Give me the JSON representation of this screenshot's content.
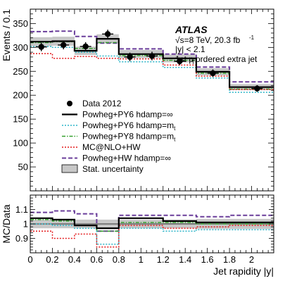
{
  "chart_data": {
    "type": "step-histogram",
    "title": "",
    "xlabel": "Jet rapidity |y|",
    "x_edges": [
      0,
      0.2,
      0.4,
      0.6,
      0.8,
      1.0,
      1.2,
      1.5,
      1.8,
      2.0,
      2.2
    ],
    "top_panel": {
      "ylabel": "Events / 0.1",
      "ylim": [
        0,
        380
      ],
      "y_ticks": [
        50,
        100,
        150,
        200,
        250,
        300,
        350
      ],
      "data": {
        "name": "Data 2012",
        "x": [
          0.1,
          0.3,
          0.5,
          0.7,
          0.9,
          1.1,
          1.35,
          1.65,
          2.05
        ],
        "y": [
          301,
          305,
          302,
          328,
          280,
          282,
          271,
          246,
          214
        ],
        "yerr": [
          9,
          9,
          9,
          9,
          9,
          9,
          8,
          8,
          7
        ]
      },
      "series": [
        {
          "name": "Powheg+PY6 hdamp=∞",
          "style": "solid",
          "color": "#000000",
          "values": [
            312,
            313,
            293,
            318,
            286,
            286,
            277,
            249,
            217,
            217
          ]
        },
        {
          "name": "Powheg+PY6 hdamp=m_t",
          "style": "dotted",
          "color": "#2bb5c8",
          "values": [
            302,
            300,
            290,
            282,
            270,
            270,
            258,
            236,
            206,
            206
          ]
        },
        {
          "name": "Powheg+PY8 hdamp=m_t",
          "style": "dash-dot",
          "color": "#33a02c",
          "values": [
            310,
            312,
            298,
            310,
            283,
            283,
            273,
            246,
            213,
            213
          ]
        },
        {
          "name": "MC@NLO+HW",
          "style": "dotted",
          "color": "#e31a1c",
          "values": [
            287,
            277,
            281,
            277,
            276,
            276,
            263,
            240,
            212,
            212
          ]
        },
        {
          "name": "Powheg+HW hdamp=∞",
          "style": "dashed",
          "color": "#6a3d9a",
          "values": [
            333,
            334,
            323,
            309,
            297,
            297,
            286,
            259,
            228,
            228
          ]
        }
      ],
      "stat_band_label": "Stat. uncertainty"
    },
    "ratio_panel": {
      "ylabel": "MC/Data",
      "ylim": [
        0.8,
        1.2
      ],
      "y_ticks": [
        0.9,
        1,
        1.1
      ],
      "stat_band_halfwidth": [
        0.03,
        0.03,
        0.03,
        0.03,
        0.03,
        0.03,
        0.03,
        0.035,
        0.035,
        0.035
      ],
      "series": [
        {
          "name": "Powheg+PY6 hdamp=∞",
          "values": [
            1.04,
            1.03,
            0.99,
            0.97,
            1.04,
            1.04,
            1.02,
            1.01,
            1.01,
            1.01
          ]
        },
        {
          "name": "Powheg+PY6 hdamp=m_t",
          "values": [
            1.0,
            0.99,
            0.97,
            0.86,
            0.97,
            0.97,
            0.95,
            0.96,
            0.96,
            0.96
          ]
        },
        {
          "name": "Powheg+PY8 hdamp=m_t",
          "values": [
            1.03,
            1.02,
            0.99,
            0.95,
            1.01,
            1.01,
            1.01,
            1.0,
            1.0,
            1.0
          ]
        },
        {
          "name": "MC@NLO+HW",
          "values": [
            0.95,
            0.9,
            0.93,
            0.84,
            0.99,
            0.99,
            0.97,
            0.98,
            0.99,
            0.99
          ]
        },
        {
          "name": "Powheg+HW hdamp=∞",
          "values": [
            1.08,
            1.09,
            1.07,
            0.95,
            1.06,
            1.06,
            1.06,
            1.05,
            1.06,
            1.06
          ]
        }
      ]
    },
    "x_ticks": [
      0,
      0.2,
      0.4,
      0.6,
      0.8,
      1,
      1.2,
      1.4,
      1.6,
      1.8,
      2
    ],
    "x_tick_labels": [
      "0",
      "0.2",
      "0.4",
      "0.6",
      "0.8",
      "1",
      "1.2",
      "1.4",
      "1.6",
      "1.8",
      "2"
    ],
    "annotations": {
      "atlas": "ATLAS",
      "energy": "√s=8 TeV, 20.3 fb",
      "energy_sup": "-1",
      "cut": "|y| < 2.1",
      "selection_pre": "1st p",
      "selection_sub": "T",
      "selection_post": " ordered extra jet"
    },
    "legend": [
      {
        "key": "data",
        "text": "Data 2012"
      },
      {
        "key": "s0",
        "text": "Powheg+PY6 hdamp=∞"
      },
      {
        "key": "s1",
        "text": "Powheg+PY6 hdamp=m",
        "sub": "t"
      },
      {
        "key": "s2",
        "text": "Powheg+PY8 hdamp=m",
        "sub": "t"
      },
      {
        "key": "s3",
        "text": "MC@NLO+HW"
      },
      {
        "key": "s4",
        "text": "Powheg+HW hdamp=∞"
      },
      {
        "key": "band",
        "text": "Stat. uncertainty"
      }
    ]
  }
}
